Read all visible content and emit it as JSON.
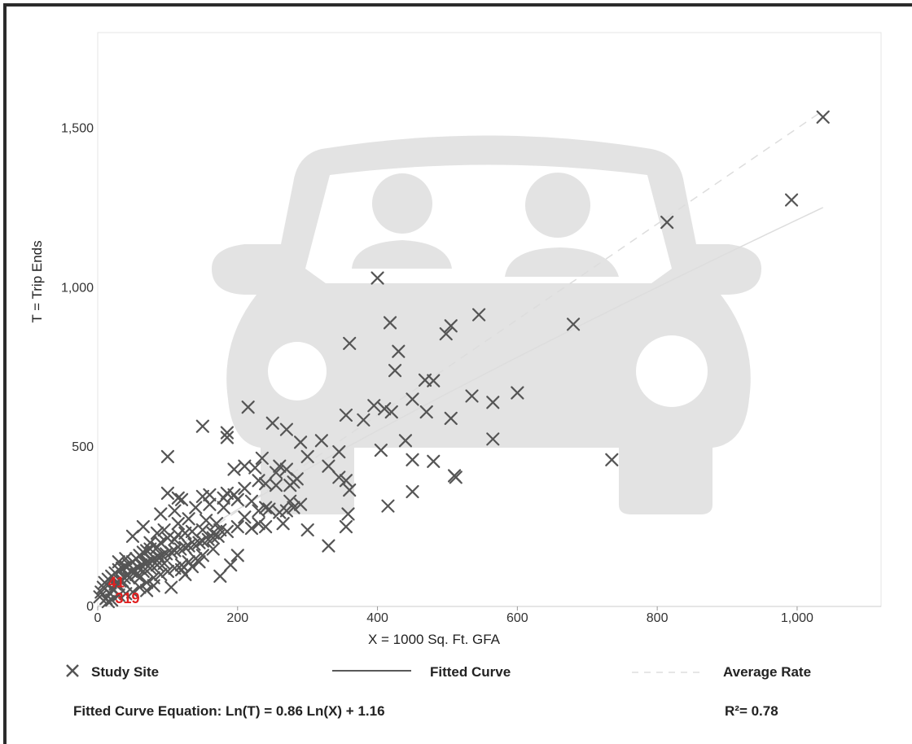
{
  "chart_data": {
    "type": "scatter",
    "xlabel": "X = 1000 Sq. Ft. GFA",
    "ylabel": "T = Trip Ends",
    "xlim": [
      0,
      1120
    ],
    "ylim": [
      0,
      1800
    ],
    "x_ticks": [
      0,
      200,
      400,
      600,
      800,
      1000
    ],
    "x_tick_labels": [
      "0",
      "200",
      "400",
      "600",
      "800",
      "1,000"
    ],
    "y_ticks": [
      0,
      500,
      1000,
      1500
    ],
    "y_tick_labels": [
      "0",
      "500",
      "1,000",
      "1,500"
    ],
    "grid": false,
    "background_icon": "car-with-two-people-icon",
    "series": [
      {
        "name": "Study Site",
        "marker": "x",
        "color": "#555555",
        "points": [
          [
            1037,
            1535
          ],
          [
            992,
            1275
          ],
          [
            814,
            1205
          ],
          [
            680,
            885
          ],
          [
            735,
            460
          ],
          [
            400,
            1030
          ],
          [
            418,
            890
          ],
          [
            545,
            915
          ],
          [
            505,
            880
          ],
          [
            498,
            855
          ],
          [
            360,
            825
          ],
          [
            430,
            800
          ],
          [
            425,
            740
          ],
          [
            468,
            710
          ],
          [
            480,
            708
          ],
          [
            600,
            670
          ],
          [
            535,
            660
          ],
          [
            565,
            640
          ],
          [
            395,
            630
          ],
          [
            410,
            620
          ],
          [
            420,
            610
          ],
          [
            450,
            650
          ],
          [
            470,
            610
          ],
          [
            505,
            590
          ],
          [
            565,
            525
          ],
          [
            355,
            600
          ],
          [
            380,
            585
          ],
          [
            440,
            520
          ],
          [
            405,
            490
          ],
          [
            450,
            460
          ],
          [
            480,
            455
          ],
          [
            510,
            410
          ],
          [
            512,
            405
          ],
          [
            450,
            360
          ],
          [
            415,
            315
          ],
          [
            355,
            395
          ],
          [
            360,
            365
          ],
          [
            358,
            290
          ],
          [
            355,
            250
          ],
          [
            330,
            190
          ],
          [
            215,
            625
          ],
          [
            150,
            565
          ],
          [
            185,
            545
          ],
          [
            185,
            530
          ],
          [
            250,
            575
          ],
          [
            270,
            555
          ],
          [
            290,
            515
          ],
          [
            320,
            520
          ],
          [
            345,
            485
          ],
          [
            300,
            470
          ],
          [
            210,
            440
          ],
          [
            225,
            435
          ],
          [
            195,
            430
          ],
          [
            235,
            465
          ],
          [
            260,
            440
          ],
          [
            255,
            420
          ],
          [
            270,
            430
          ],
          [
            285,
            400
          ],
          [
            330,
            440
          ],
          [
            345,
            405
          ],
          [
            275,
            380
          ],
          [
            280,
            390
          ],
          [
            100,
            470
          ],
          [
            100,
            355
          ],
          [
            115,
            340
          ],
          [
            120,
            335
          ],
          [
            150,
            345
          ],
          [
            160,
            350
          ],
          [
            185,
            355
          ],
          [
            195,
            350
          ],
          [
            210,
            370
          ],
          [
            230,
            395
          ],
          [
            240,
            385
          ],
          [
            255,
            380
          ],
          [
            180,
            340
          ],
          [
            200,
            335
          ],
          [
            220,
            330
          ],
          [
            240,
            310
          ],
          [
            270,
            300
          ],
          [
            280,
            310
          ],
          [
            300,
            240
          ],
          [
            265,
            260
          ],
          [
            210,
            280
          ],
          [
            230,
            260
          ],
          [
            240,
            250
          ],
          [
            220,
            245
          ],
          [
            200,
            250
          ],
          [
            185,
            235
          ],
          [
            175,
            240
          ],
          [
            165,
            230
          ],
          [
            150,
            240
          ],
          [
            135,
            235
          ],
          [
            125,
            230
          ],
          [
            115,
            225
          ],
          [
            110,
            210
          ],
          [
            100,
            215
          ],
          [
            90,
            200
          ],
          [
            85,
            185
          ],
          [
            75,
            180
          ],
          [
            70,
            175
          ],
          [
            65,
            170
          ],
          [
            60,
            160
          ],
          [
            55,
            150
          ],
          [
            50,
            140
          ],
          [
            45,
            130
          ],
          [
            40,
            125
          ],
          [
            35,
            120
          ],
          [
            30,
            115
          ],
          [
            25,
            105
          ],
          [
            20,
            95
          ],
          [
            15,
            85
          ],
          [
            10,
            75
          ],
          [
            8,
            60
          ],
          [
            5,
            45
          ],
          [
            3,
            30
          ],
          [
            12,
            25
          ],
          [
            18,
            40
          ],
          [
            22,
            55
          ],
          [
            28,
            70
          ],
          [
            32,
            80
          ],
          [
            38,
            90
          ],
          [
            42,
            100
          ],
          [
            48,
            110
          ],
          [
            52,
            115
          ],
          [
            58,
            120
          ],
          [
            62,
            130
          ],
          [
            68,
            135
          ],
          [
            72,
            140
          ],
          [
            78,
            145
          ],
          [
            82,
            150
          ],
          [
            88,
            155
          ],
          [
            92,
            160
          ],
          [
            98,
            165
          ],
          [
            105,
            170
          ],
          [
            110,
            175
          ],
          [
            118,
            180
          ],
          [
            125,
            185
          ],
          [
            130,
            190
          ],
          [
            138,
            195
          ],
          [
            145,
            200
          ],
          [
            150,
            205
          ],
          [
            158,
            210
          ],
          [
            165,
            215
          ],
          [
            172,
            220
          ],
          [
            95,
            135
          ],
          [
            85,
            130
          ],
          [
            75,
            120
          ],
          [
            65,
            110
          ],
          [
            55,
            100
          ],
          [
            45,
            90
          ],
          [
            35,
            80
          ],
          [
            25,
            70
          ],
          [
            60,
            60
          ],
          [
            70,
            75
          ],
          [
            80,
            90
          ],
          [
            90,
            100
          ],
          [
            100,
            110
          ],
          [
            110,
            120
          ],
          [
            120,
            130
          ],
          [
            130,
            140
          ],
          [
            140,
            150
          ],
          [
            105,
            60
          ],
          [
            125,
            100
          ],
          [
            145,
            140
          ],
          [
            165,
            180
          ],
          [
            150,
            160
          ],
          [
            135,
            125
          ],
          [
            120,
            115
          ],
          [
            175,
            95
          ],
          [
            190,
            130
          ],
          [
            200,
            160
          ],
          [
            80,
            65
          ],
          [
            70,
            50
          ],
          [
            50,
            45
          ],
          [
            40,
            40
          ],
          [
            30,
            35
          ],
          [
            20,
            20
          ],
          [
            15,
            15
          ],
          [
            60,
            90
          ],
          [
            75,
            200
          ],
          [
            95,
            240
          ],
          [
            115,
            260
          ],
          [
            130,
            275
          ],
          [
            155,
            270
          ],
          [
            170,
            260
          ],
          [
            85,
            230
          ],
          [
            65,
            250
          ],
          [
            50,
            220
          ],
          [
            40,
            150
          ],
          [
            30,
            140
          ],
          [
            90,
            290
          ],
          [
            110,
            300
          ],
          [
            140,
            310
          ],
          [
            160,
            320
          ],
          [
            180,
            310
          ],
          [
            230,
            300
          ],
          [
            245,
            305
          ],
          [
            260,
            295
          ],
          [
            275,
            330
          ],
          [
            290,
            320
          ]
        ]
      },
      {
        "name": "Fitted Curve",
        "line": "solid",
        "color": "#dddddd",
        "equation": "Ln(T) = 0.86 Ln(X) + 1.16"
      },
      {
        "name": "Average Rate",
        "line": "dashed",
        "color": "#dddddd"
      }
    ],
    "point_labels": [
      {
        "text": "41",
        "x": 15,
        "y": 60
      },
      {
        "text": "319",
        "x": 25,
        "y": 10
      }
    ],
    "legend_placement": "bottom"
  },
  "legend": {
    "study_site": "Study Site",
    "fitted_curve": "Fitted Curve",
    "average_rate": "Average Rate"
  },
  "footer": {
    "equation": "Fitted Curve Equation: Ln(T) = 0.86 Ln(X) + 1.16",
    "r2": "R²= 0.78"
  },
  "colors": {
    "marker": "#555555",
    "label_red": "#e02020",
    "icon": "#e3e3e3",
    "frame": "#2b2b2b"
  }
}
